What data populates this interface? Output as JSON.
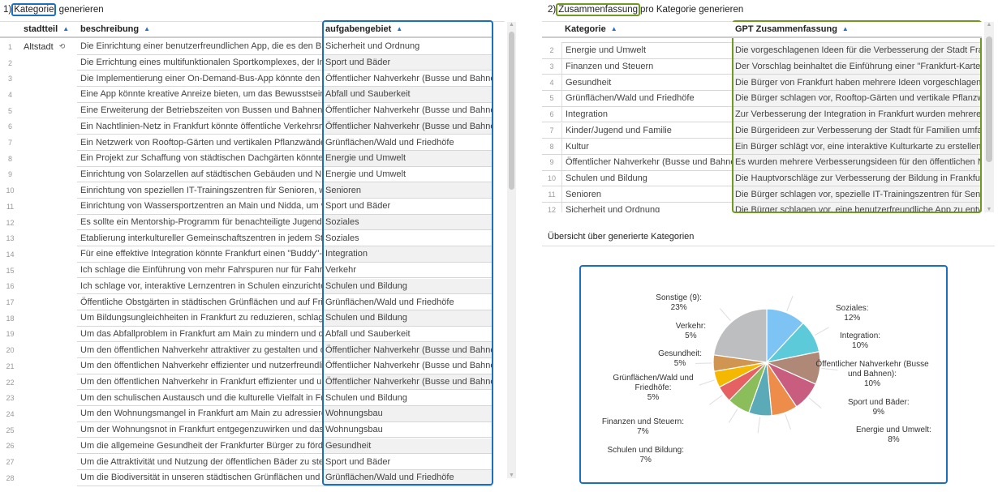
{
  "left": {
    "title_num": "1)",
    "title_highlight": "Kategorie",
    "title_rest": "generieren",
    "headers": [
      "stadtteil",
      "beschreibung",
      "aufgabengebiet"
    ],
    "first_stadtteil": "Altstadt",
    "rows": [
      [
        "1",
        "Die Einrichtung einer benutzerfreundlichen App, die es den Bürg...",
        "Sicherheit und Ordnung"
      ],
      [
        "2",
        "Die Errichtung eines multifunktionalen Sportkomplexes, der Ind...",
        "Sport und Bäder"
      ],
      [
        "3",
        "Die Implementierung einer On-Demand-Bus-App könnte den öf...",
        "Öffentlicher Nahverkehr (Busse und Bahnen)"
      ],
      [
        "4",
        "Eine App könnte kreative Anreize bieten, um das Bewusstsein f...",
        "Abfall und Sauberkeit"
      ],
      [
        "5",
        "Eine Erweiterung der Betriebszeiten von Bussen und Bahnen a...",
        "Öffentlicher Nahverkehr (Busse und Bahnen)"
      ],
      [
        "6",
        "Ein Nachtlinien-Netz in Frankfurt könnte öffentliche Verkehrsmi...",
        "Öffentlicher Nahverkehr (Busse und Bahnen)"
      ],
      [
        "7",
        "Ein Netzwerk von Rooftop-Gärten und vertikalen Pflanzwänden...",
        "Grünflächen/Wald und Friedhöfe"
      ],
      [
        "8",
        "Ein Projekt zur Schaffung von städtischen Dachgärten könnte d...",
        "Energie und Umwelt"
      ],
      [
        "9",
        "Einrichtung von Solarzellen auf städtischen Gebäuden und Nutz...",
        "Energie und Umwelt"
      ],
      [
        "10",
        "Einrichtung von speziellen IT-Trainingszentren für Senioren, wo ...",
        "Senioren"
      ],
      [
        "11",
        "Einrichtung von Wassersportzentren an Main und Nidda, um vie...",
        "Sport und Bäder"
      ],
      [
        "12",
        "Es sollte ein Mentorship-Programm für benachteiligte Jugendlic...",
        "Soziales"
      ],
      [
        "13",
        "Etablierung interkultureller Gemeinschaftszentren in jedem Sta...",
        "Soziales"
      ],
      [
        "14",
        "Für eine effektive Integration könnte Frankfurt einen \"Buddy\"-B...",
        "Integration"
      ],
      [
        "15",
        "Ich schlage die Einführung von mehr Fahrspuren nur für Fahrräd...",
        "Verkehr"
      ],
      [
        "16",
        "Ich schlage vor, interaktive Lernzentren in Schulen einzurichten,...",
        "Schulen und Bildung"
      ],
      [
        "17",
        "Öffentliche Obstgärten in städtischen Grünflächen und auf Frie...",
        "Grünflächen/Wald und Friedhöfe"
      ],
      [
        "18",
        "Um Bildungsungleichheiten in Frankfurt zu reduzieren, schlage i...",
        "Schulen und Bildung"
      ],
      [
        "19",
        "Um das Abfallproblem in Frankfurt am Main zu mindern und die...",
        "Abfall und Sauberkeit"
      ],
      [
        "20",
        "Um den öffentlichen Nahverkehr attraktiver zu gestalten und di...",
        "Öffentlicher Nahverkehr (Busse und Bahnen)"
      ],
      [
        "21",
        "Um den öffentlichen Nahverkehr effizienter und nutzerfreundlic...",
        "Öffentlicher Nahverkehr (Busse und Bahnen)"
      ],
      [
        "22",
        "Um den öffentlichen Nahverkehr in Frankfurt effizienter und um...",
        "Öffentlicher Nahverkehr (Busse und Bahnen)"
      ],
      [
        "23",
        "Um den schulischen Austausch und die kulturelle Vielfalt in Fra...",
        "Schulen und Bildung"
      ],
      [
        "24",
        "Um den Wohnungsmangel in Frankfurt am Main zu adressieren,...",
        "Wohnungsbau"
      ],
      [
        "25",
        "Um der Wohnungsnot in Frankfurt entgegenzuwirken und das S...",
        "Wohnungsbau"
      ],
      [
        "26",
        "Um die allgemeine Gesundheit der Frankfurter Bürger zu förder...",
        "Gesundheit"
      ],
      [
        "27",
        "Um die Attraktivität und Nutzung der öffentlichen Bäder zu stei...",
        "Sport und Bäder"
      ],
      [
        "28",
        "Um die Biodiversität in unseren städtischen Grünflächen und Fri...",
        "Grünflächen/Wald und Friedhöfe"
      ]
    ],
    "highlight_color": "#1a6fc0"
  },
  "right": {
    "title_num": "2)",
    "title_highlight": "Zusammenfassung",
    "title_rest": "pro Kategorie generieren",
    "headers": [
      "Kategorie",
      "GPT Zusammenfassung"
    ],
    "rows": [
      [
        "2",
        "Energie und Umwelt",
        "Die vorgeschlagenen Ideen für die Verbesserung der Stadt Frank..."
      ],
      [
        "3",
        "Finanzen und Steuern",
        "Der Vorschlag beinhaltet die Einführung einer \"Frankfurt-Karte\" ..."
      ],
      [
        "4",
        "Gesundheit",
        "Die Bürger von Frankfurt haben mehrere Ideen vorgeschlagen, u..."
      ],
      [
        "5",
        "Grünflächen/Wald und Friedhöfe",
        "Die Bürger schlagen vor, Rooftop-Gärten und vertikale Pflanzwä..."
      ],
      [
        "6",
        "Integration",
        "Zur Verbesserung der Integration in Frankfurt wurden mehrere I..."
      ],
      [
        "7",
        "Kinder/Jugend und Familie",
        "Die Bürgerideen zur Verbesserung der Stadt für Familien umfass..."
      ],
      [
        "8",
        "Kultur",
        "Ein Bürger schlägt vor, eine interaktive Kulturkarte zu erstellen, d..."
      ],
      [
        "9",
        "Öffentlicher Nahverkehr (Busse und Bahnen)",
        "Es wurden mehrere Verbesserungsideen für den öffentlichen Na..."
      ],
      [
        "10",
        "Schulen und Bildung",
        "Die Hauptvorschläge zur Verbesserung der Bildung in Frankfurt ..."
      ],
      [
        "11",
        "Senioren",
        "Die Bürger schlagen vor, spezielle IT-Trainingszentren für Seniore..."
      ],
      [
        "12",
        "Sicherheit und Ordnung",
        "Die Bürger schlagen vor, eine benutzerfreundliche App zu entwic..."
      ]
    ],
    "highlight_color": "#6f9a1f"
  },
  "overview": {
    "title": "Übersicht über generierte Kategorien",
    "box_color": "#1a6fc0"
  },
  "chart_data": {
    "type": "pie",
    "slices": [
      {
        "label": "Soziales:",
        "pct": "12%",
        "value": 12,
        "color": "#7dc4f5"
      },
      {
        "label": "Integration:",
        "pct": "10%",
        "value": 10,
        "color": "#5ccad9"
      },
      {
        "label": "Öffentlicher Nahverkehr (Busse und Bahnen):",
        "pct": "10%",
        "value": 10,
        "color": "#b08878"
      },
      {
        "label": "Sport und Bäder:",
        "pct": "9%",
        "value": 9,
        "color": "#c95d7f"
      },
      {
        "label": "Energie und Umwelt:",
        "pct": "8%",
        "value": 8,
        "color": "#ee8c4a"
      },
      {
        "label": "Schulen und Bildung:",
        "pct": "7%",
        "value": 7,
        "color": "#5aaab8"
      },
      {
        "label": "Finanzen und Steuern:",
        "pct": "7%",
        "value": 7,
        "color": "#8bbd5b"
      },
      {
        "label": "Grünflächen/Wald und Friedhöfe:",
        "pct": "5%",
        "value": 5,
        "color": "#e66262"
      },
      {
        "label": "Gesundheit:",
        "pct": "5%",
        "value": 5,
        "color": "#f5b800"
      },
      {
        "label": "Verkehr:",
        "pct": "5%",
        "value": 5,
        "color": "#cf9551"
      },
      {
        "label": "Sonstige  (9):",
        "pct": "23%",
        "value": 23,
        "color": "#bdbec0"
      }
    ]
  }
}
